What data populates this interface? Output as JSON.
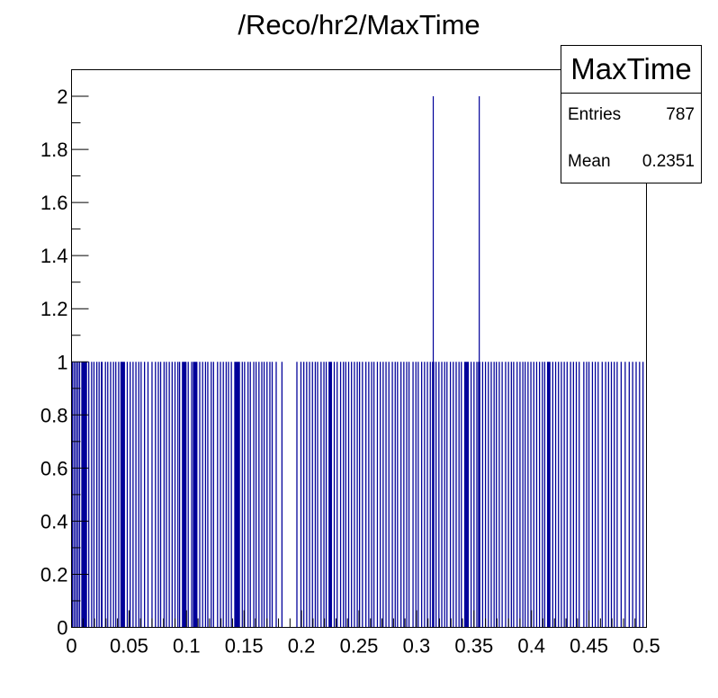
{
  "title": "/Reco/hr2/MaxTime",
  "stats_box": {
    "name": "MaxTime",
    "rows": [
      {
        "label": "Entries",
        "value": "787"
      },
      {
        "label": "Mean",
        "value": "0.2351"
      }
    ]
  },
  "colors": {
    "bar_fill": "#000099",
    "axis": "#000000",
    "background": "#ffffff"
  },
  "chart_data": {
    "type": "bar",
    "title": "/Reco/hr2/MaxTime",
    "xlabel": "",
    "ylabel": "",
    "xlim": [
      0,
      0.5
    ],
    "ylim": [
      0,
      2.1
    ],
    "grid": false,
    "legend_position": "top-right stats box",
    "x_ticks": [
      "0",
      "0.05",
      "0.1",
      "0.15",
      "0.2",
      "0.25",
      "0.3",
      "0.35",
      "0.4",
      "0.45",
      "0.5"
    ],
    "y_ticks": [
      "0",
      "0.2",
      "0.4",
      "0.6",
      "0.8",
      "1",
      "1.2",
      "1.4",
      "1.6",
      "1.8",
      "2"
    ],
    "description": "Fine-binned histogram; nearly all filled bins have content 1, with two bins of content 2 near x=0.3145 and x=0.3545. Empty gaps visible around x~0.185-0.195.",
    "series": [
      {
        "name": "MaxTime",
        "entries": 787,
        "mean": 0.2351,
        "bins_content_2": [
          0.3145,
          0.3545
        ],
        "filled_ranges_content_1": [
          [
            0.0,
            0.0015
          ],
          [
            0.002,
            0.003
          ],
          [
            0.0035,
            0.0045
          ],
          [
            0.005,
            0.006
          ],
          [
            0.0065,
            0.0075
          ],
          [
            0.0085,
            0.0135
          ],
          [
            0.0145,
            0.0155
          ],
          [
            0.017,
            0.018
          ],
          [
            0.019,
            0.02
          ],
          [
            0.0215,
            0.0225
          ],
          [
            0.0235,
            0.0245
          ],
          [
            0.0255,
            0.027
          ],
          [
            0.029,
            0.03
          ],
          [
            0.031,
            0.032
          ],
          [
            0.0335,
            0.0345
          ],
          [
            0.036,
            0.037
          ],
          [
            0.038,
            0.039
          ],
          [
            0.0405,
            0.0415
          ],
          [
            0.0425,
            0.0465
          ],
          [
            0.048,
            0.049
          ],
          [
            0.0505,
            0.0515
          ],
          [
            0.053,
            0.054
          ],
          [
            0.0555,
            0.0565
          ],
          [
            0.058,
            0.059
          ],
          [
            0.06,
            0.061
          ],
          [
            0.063,
            0.064
          ],
          [
            0.066,
            0.067
          ],
          [
            0.0695,
            0.0705
          ],
          [
            0.0725,
            0.0735
          ],
          [
            0.075,
            0.076
          ],
          [
            0.077,
            0.078
          ],
          [
            0.08,
            0.081
          ],
          [
            0.082,
            0.083
          ],
          [
            0.0845,
            0.0855
          ],
          [
            0.087,
            0.088
          ],
          [
            0.0895,
            0.0905
          ],
          [
            0.092,
            0.093
          ],
          [
            0.0935,
            0.0945
          ],
          [
            0.096,
            0.1
          ],
          [
            0.101,
            0.102
          ],
          [
            0.104,
            0.105
          ],
          [
            0.1055,
            0.1095
          ],
          [
            0.111,
            0.112
          ],
          [
            0.1135,
            0.1145
          ],
          [
            0.116,
            0.117
          ],
          [
            0.118,
            0.119
          ],
          [
            0.121,
            0.122
          ],
          [
            0.123,
            0.124
          ],
          [
            0.1265,
            0.1275
          ],
          [
            0.129,
            0.13
          ],
          [
            0.1315,
            0.1325
          ],
          [
            0.134,
            0.135
          ],
          [
            0.136,
            0.137
          ],
          [
            0.1385,
            0.1395
          ],
          [
            0.1415,
            0.1465
          ],
          [
            0.148,
            0.149
          ],
          [
            0.15,
            0.151
          ],
          [
            0.153,
            0.154
          ],
          [
            0.155,
            0.156
          ],
          [
            0.158,
            0.159
          ],
          [
            0.16,
            0.161
          ],
          [
            0.1625,
            0.1635
          ],
          [
            0.165,
            0.166
          ],
          [
            0.167,
            0.168
          ],
          [
            0.1695,
            0.1705
          ],
          [
            0.172,
            0.173
          ],
          [
            0.174,
            0.175
          ],
          [
            0.1775,
            0.1785
          ],
          [
            0.1825,
            0.1835
          ],
          [
            0.1955,
            0.1965
          ],
          [
            0.199,
            0.2
          ],
          [
            0.2015,
            0.2025
          ],
          [
            0.204,
            0.205
          ],
          [
            0.2065,
            0.2075
          ],
          [
            0.209,
            0.21
          ],
          [
            0.2115,
            0.2125
          ],
          [
            0.2135,
            0.2145
          ],
          [
            0.2165,
            0.2175
          ],
          [
            0.219,
            0.22
          ],
          [
            0.221,
            0.222
          ],
          [
            0.2235,
            0.2265
          ],
          [
            0.228,
            0.229
          ],
          [
            0.2305,
            0.2315
          ],
          [
            0.2335,
            0.2345
          ],
          [
            0.236,
            0.237
          ],
          [
            0.238,
            0.239
          ],
          [
            0.2405,
            0.2415
          ],
          [
            0.243,
            0.244
          ],
          [
            0.2455,
            0.2465
          ],
          [
            0.248,
            0.249
          ],
          [
            0.25,
            0.251
          ],
          [
            0.2525,
            0.2535
          ],
          [
            0.2555,
            0.2565
          ],
          [
            0.258,
            0.259
          ],
          [
            0.2605,
            0.2615
          ],
          [
            0.2625,
            0.2635
          ],
          [
            0.2655,
            0.2665
          ],
          [
            0.268,
            0.269
          ],
          [
            0.2705,
            0.2715
          ],
          [
            0.273,
            0.274
          ],
          [
            0.2755,
            0.2765
          ],
          [
            0.2785,
            0.2795
          ],
          [
            0.281,
            0.282
          ],
          [
            0.283,
            0.284
          ],
          [
            0.286,
            0.287
          ],
          [
            0.2885,
            0.2895
          ],
          [
            0.291,
            0.292
          ],
          [
            0.293,
            0.294
          ],
          [
            0.2965,
            0.2975
          ],
          [
            0.299,
            0.3
          ],
          [
            0.301,
            0.302
          ],
          [
            0.304,
            0.305
          ],
          [
            0.3065,
            0.3075
          ],
          [
            0.309,
            0.31
          ],
          [
            0.3115,
            0.3125
          ],
          [
            0.3135,
            0.3155
          ],
          [
            0.3165,
            0.3175
          ],
          [
            0.319,
            0.32
          ],
          [
            0.3215,
            0.3225
          ],
          [
            0.324,
            0.325
          ],
          [
            0.326,
            0.327
          ],
          [
            0.329,
            0.33
          ],
          [
            0.3315,
            0.3325
          ],
          [
            0.334,
            0.335
          ],
          [
            0.3365,
            0.3375
          ],
          [
            0.3385,
            0.3395
          ],
          [
            0.3415,
            0.3455
          ],
          [
            0.347,
            0.348
          ],
          [
            0.3495,
            0.3505
          ],
          [
            0.352,
            0.353
          ],
          [
            0.3535,
            0.3555
          ],
          [
            0.357,
            0.358
          ],
          [
            0.3595,
            0.3605
          ],
          [
            0.362,
            0.363
          ],
          [
            0.3645,
            0.3655
          ],
          [
            0.367,
            0.368
          ],
          [
            0.369,
            0.37
          ],
          [
            0.3715,
            0.3725
          ],
          [
            0.374,
            0.375
          ],
          [
            0.377,
            0.378
          ],
          [
            0.3795,
            0.3805
          ],
          [
            0.382,
            0.383
          ],
          [
            0.384,
            0.385
          ],
          [
            0.387,
            0.388
          ],
          [
            0.3895,
            0.3905
          ],
          [
            0.392,
            0.393
          ],
          [
            0.394,
            0.395
          ],
          [
            0.3965,
            0.3975
          ],
          [
            0.399,
            0.4
          ],
          [
            0.4015,
            0.4025
          ],
          [
            0.404,
            0.405
          ],
          [
            0.4065,
            0.4075
          ],
          [
            0.409,
            0.41
          ],
          [
            0.411,
            0.412
          ],
          [
            0.4135,
            0.4165
          ],
          [
            0.418,
            0.419
          ],
          [
            0.4205,
            0.4215
          ],
          [
            0.423,
            0.424
          ],
          [
            0.4255,
            0.4265
          ],
          [
            0.428,
            0.429
          ],
          [
            0.4305,
            0.4315
          ],
          [
            0.4335,
            0.4345
          ],
          [
            0.436,
            0.437
          ],
          [
            0.4385,
            0.4395
          ],
          [
            0.441,
            0.442
          ],
          [
            0.445,
            0.446
          ],
          [
            0.4475,
            0.4485
          ],
          [
            0.4495,
            0.4505
          ],
          [
            0.4525,
            0.4535
          ],
          [
            0.455,
            0.456
          ],
          [
            0.4575,
            0.4585
          ],
          [
            0.461,
            0.462
          ],
          [
            0.464,
            0.465
          ],
          [
            0.4665,
            0.4675
          ],
          [
            0.469,
            0.47
          ],
          [
            0.4715,
            0.4725
          ],
          [
            0.474,
            0.475
          ],
          [
            0.4775,
            0.4785
          ],
          [
            0.481,
            0.482
          ],
          [
            0.4845,
            0.4855
          ],
          [
            0.4875,
            0.4885
          ],
          [
            0.4905,
            0.4915
          ],
          [
            0.4935,
            0.4945
          ],
          [
            0.4965,
            0.4975
          ]
        ]
      }
    ]
  }
}
